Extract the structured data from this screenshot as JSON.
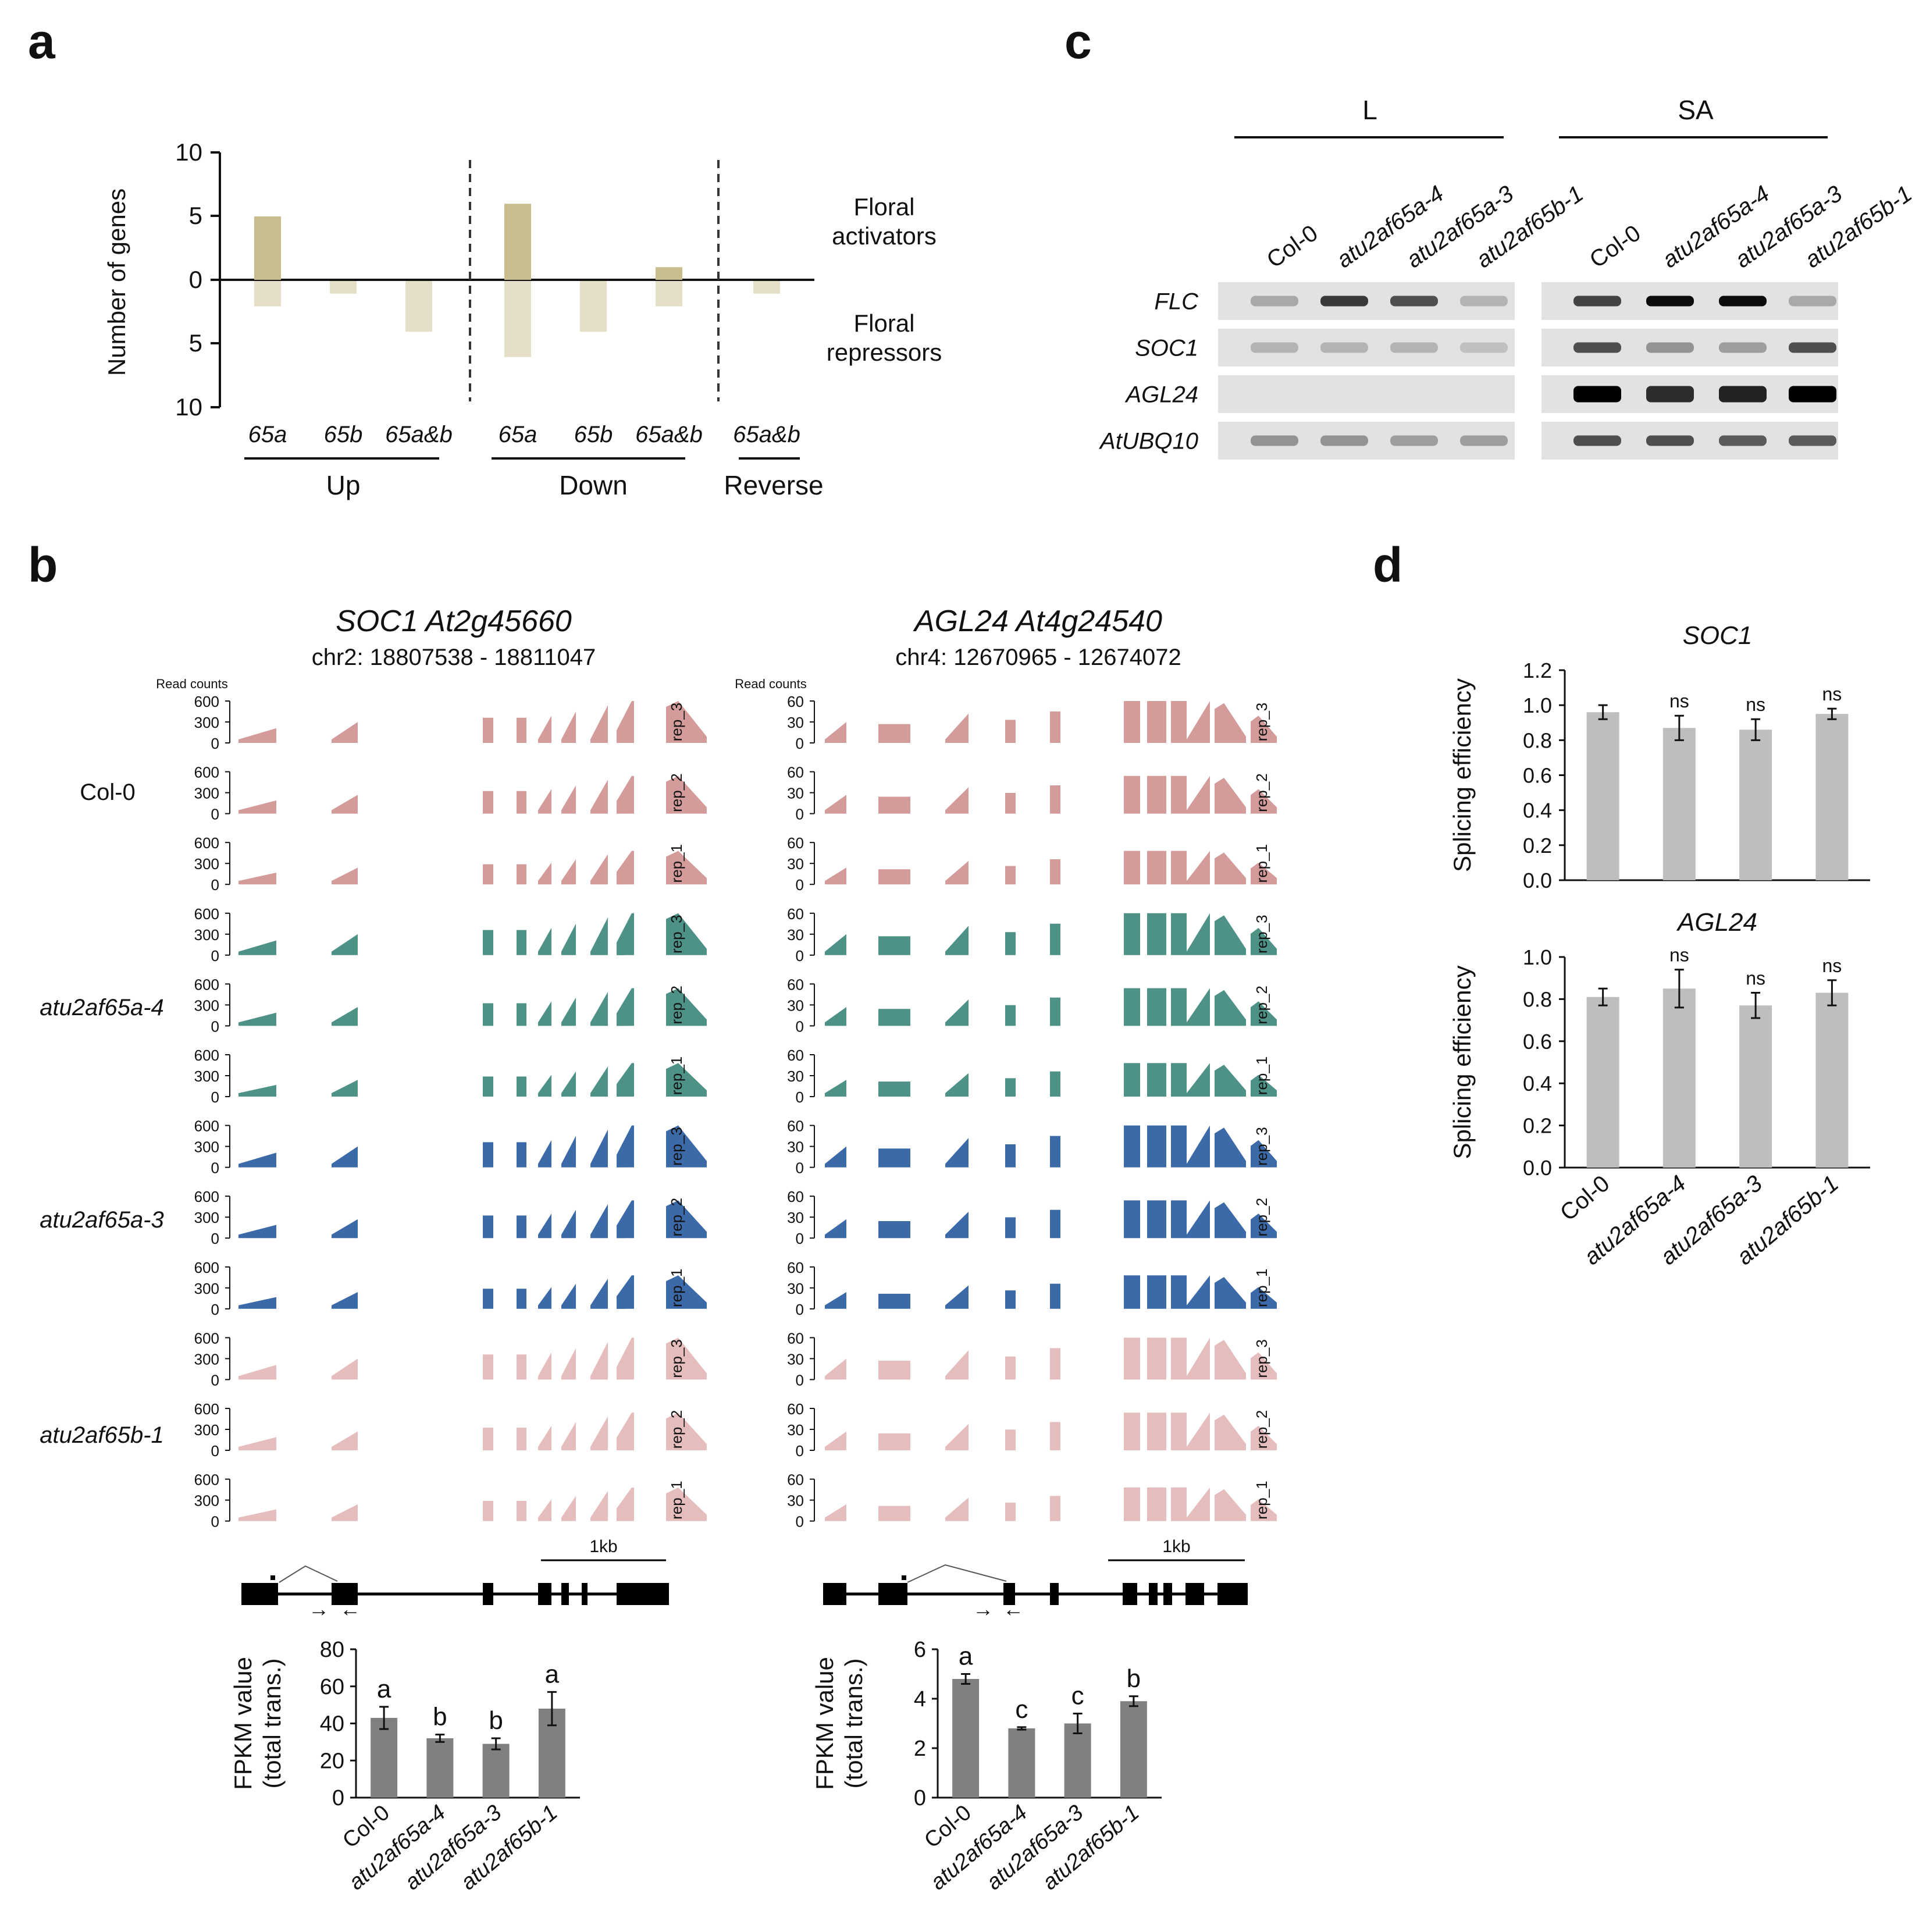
{
  "panel_labels": [
    "a",
    "b",
    "c",
    "d"
  ],
  "colors": {
    "activator_bar": "#c8bd8c",
    "repressor_bar": "#e5dfc7",
    "col0_track": "#d49b9b",
    "a4_track": "#4e9287",
    "a3_track": "#3c6aa8",
    "b1_track": "#e6bdbd",
    "bar_gray": "#808080",
    "splice_gray": "#bebebe",
    "gel_bg": "#e2e2e2"
  },
  "panel_a": {
    "ylabel": "Number of genes",
    "yticks": [
      "10",
      "5",
      "0",
      "5",
      "10"
    ],
    "side_top": [
      "Floral",
      "activators"
    ],
    "side_bottom": [
      "Floral",
      "repressors"
    ],
    "groups": [
      {
        "name": "Up",
        "items": [
          "65a",
          "65b",
          "65a&b"
        ]
      },
      {
        "name": "Down",
        "items": [
          "65a",
          "65b",
          "65a&b"
        ]
      },
      {
        "name": "Reverse",
        "items": [
          "65a&b"
        ]
      }
    ],
    "chart_data": {
      "type": "bar",
      "title": "",
      "xlabel": "",
      "ylabel": "Number of genes",
      "ylim": [
        -10,
        10
      ],
      "categories": [
        "Up 65a",
        "Up 65b",
        "Up 65a&b",
        "Down 65a",
        "Down 65b",
        "Down 65a&b",
        "Reverse 65a&b"
      ],
      "series": [
        {
          "name": "Floral activators",
          "values": [
            5,
            0,
            0,
            6,
            0,
            1,
            0
          ]
        },
        {
          "name": "Floral repressors",
          "values": [
            2,
            1,
            4,
            6,
            4,
            2,
            1
          ]
        }
      ]
    }
  },
  "panel_b": {
    "read_counts_label": "Read counts",
    "rep_labels": [
      "rep_3",
      "rep_2",
      "rep_1"
    ],
    "genotypes": [
      "Col-0",
      "atu2af65a-4",
      "atu2af65a-3",
      "atu2af65b-1"
    ],
    "scale_label": "1kb",
    "genes": [
      {
        "title": "SOC1 At2g45660",
        "coords": "chr2: 18807538 - 18811047",
        "ticks": [
          "600",
          "300",
          "0"
        ],
        "fpkm": {
          "ylabel_1": "FPKM value",
          "ylabel_2": "(total trans.)",
          "yticks": [
            "80",
            "60",
            "40",
            "20",
            "0"
          ],
          "letters": [
            "a",
            "b",
            "b",
            "a"
          ],
          "chart_data": {
            "type": "bar",
            "categories": [
              "Col-0",
              "atu2af65a-4",
              "atu2af65a-3",
              "atu2af65b-1"
            ],
            "values": [
              43,
              32,
              29,
              48
            ],
            "errors": [
              6,
              2,
              3,
              9
            ],
            "ylim": [
              0,
              80
            ],
            "ylabel": "FPKM value (total trans.)"
          }
        }
      },
      {
        "title": "AGL24 At4g24540",
        "coords": "chr4: 12670965 - 12674072",
        "ticks": [
          "60",
          "30",
          "0"
        ],
        "fpkm": {
          "ylabel_1": "FPKM value",
          "ylabel_2": "(total trans.)",
          "yticks": [
            "6",
            "4",
            "2",
            "0"
          ],
          "letters": [
            "a",
            "c",
            "c",
            "b"
          ],
          "chart_data": {
            "type": "bar",
            "categories": [
              "Col-0",
              "atu2af65a-4",
              "atu2af65a-3",
              "atu2af65b-1"
            ],
            "values": [
              4.8,
              2.8,
              3.0,
              3.9
            ],
            "errors": [
              0.2,
              0.05,
              0.4,
              0.2
            ],
            "ylim": [
              0,
              6
            ],
            "ylabel": "FPKM value (total trans.)"
          }
        }
      }
    ]
  },
  "panel_c": {
    "condition_labels": [
      "L",
      "SA"
    ],
    "lanes": [
      "Col-0",
      "atu2af65a-4",
      "atu2af65a-3",
      "atu2af65b-1"
    ],
    "genes": [
      "FLC",
      "SOC1",
      "AGL24",
      "AtUBQ10"
    ]
  },
  "panel_d": {
    "ylabel": "Splicing efficiency",
    "categories": [
      "Col-0",
      "atu2af65a-4",
      "atu2af65a-3",
      "atu2af65b-1"
    ],
    "charts": [
      {
        "title": "SOC1",
        "yticks": [
          "1.2",
          "1.0",
          "0.8",
          "0.6",
          "0.4",
          "0.2",
          "0.0"
        ],
        "sig": [
          "",
          "ns",
          "ns",
          "ns"
        ],
        "chart_data": {
          "type": "bar",
          "categories": [
            "Col-0",
            "atu2af65a-4",
            "atu2af65a-3",
            "atu2af65b-1"
          ],
          "values": [
            0.96,
            0.87,
            0.86,
            0.95
          ],
          "errors": [
            0.04,
            0.07,
            0.06,
            0.03
          ],
          "ylim": [
            0,
            1.2
          ],
          "ylabel": "Splicing efficiency"
        }
      },
      {
        "title": "AGL24",
        "yticks": [
          "1.0",
          "0.8",
          "0.6",
          "0.4",
          "0.2",
          "0.0"
        ],
        "sig": [
          "",
          "ns",
          "ns",
          "ns"
        ],
        "chart_data": {
          "type": "bar",
          "categories": [
            "Col-0",
            "atu2af65a-4",
            "atu2af65a-3",
            "atu2af65b-1"
          ],
          "values": [
            0.81,
            0.85,
            0.77,
            0.83
          ],
          "errors": [
            0.04,
            0.09,
            0.06,
            0.06
          ],
          "ylim": [
            0,
            1.0
          ],
          "ylabel": "Splicing efficiency"
        }
      }
    ]
  }
}
